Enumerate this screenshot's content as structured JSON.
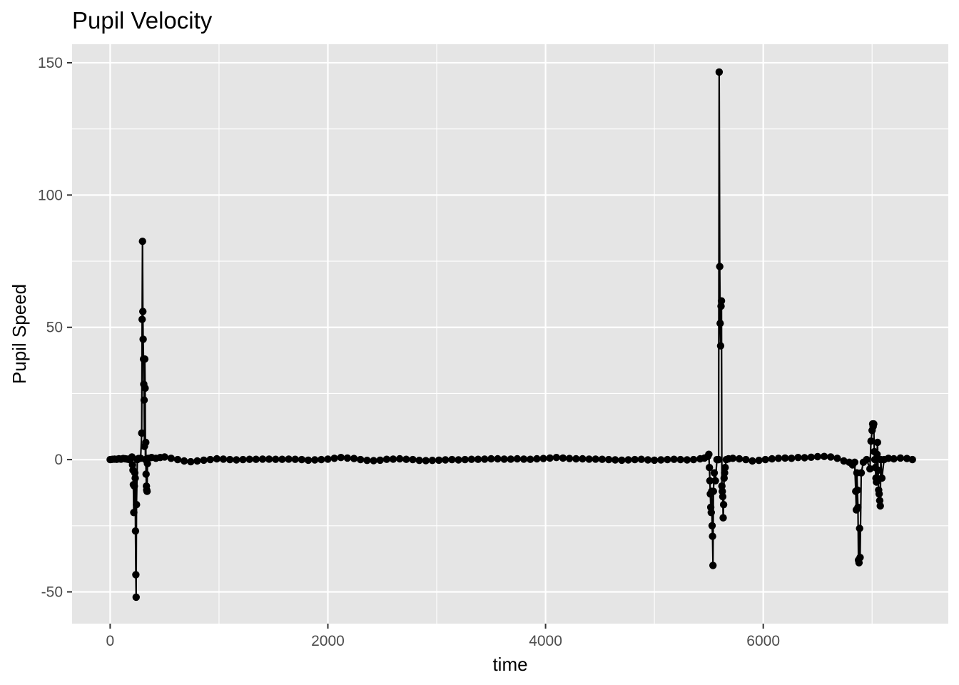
{
  "chart_data": {
    "type": "line",
    "title": "Pupil Velocity",
    "xlabel": "time",
    "ylabel": "Pupil Speed",
    "xlim": [
      -350,
      7700
    ],
    "ylim": [
      -62,
      157
    ],
    "x_ticks": [
      0,
      2000,
      4000,
      6000
    ],
    "x_tick_labels": [
      "0",
      "2000",
      "4000",
      "6000"
    ],
    "y_ticks": [
      -50,
      0,
      50,
      100,
      150
    ],
    "y_tick_labels": [
      "-50",
      "0",
      "50",
      "100",
      "150"
    ],
    "grid": true,
    "legend": "none",
    "colors": {
      "panel": "#e5e5e5",
      "grid": "#ffffff",
      "series": "#000000"
    },
    "series": [
      {
        "points": [
          [
            0,
            0
          ],
          [
            20,
            0.1
          ],
          [
            40,
            0.2
          ],
          [
            60,
            0.1
          ],
          [
            80,
            0.3
          ],
          [
            100,
            0.2
          ],
          [
            120,
            0.4
          ],
          [
            140,
            0.3
          ],
          [
            160,
            0.2
          ],
          [
            175,
            0
          ],
          [
            190,
            0.5
          ],
          [
            200,
            1
          ],
          [
            205,
            -2
          ],
          [
            210,
            -4
          ],
          [
            213,
            -9.5
          ],
          [
            217,
            -20
          ],
          [
            222,
            -10
          ],
          [
            226,
            -5
          ],
          [
            230,
            -7
          ],
          [
            233,
            -27
          ],
          [
            236,
            -43.5
          ],
          [
            239,
            -52
          ],
          [
            242,
            -17
          ],
          [
            250,
            0
          ],
          [
            260,
            0.4
          ],
          [
            280,
            0.5
          ],
          [
            290,
            10
          ],
          [
            294,
            53
          ],
          [
            297,
            82.5
          ],
          [
            300,
            56
          ],
          [
            303,
            45.5
          ],
          [
            306,
            38
          ],
          [
            309,
            28.5
          ],
          [
            312,
            22.5
          ],
          [
            315,
            5
          ],
          [
            318,
            38
          ],
          [
            321,
            27
          ],
          [
            324,
            0
          ],
          [
            327,
            6.5
          ],
          [
            330,
            -5.5
          ],
          [
            333,
            -10
          ],
          [
            336,
            -11.5
          ],
          [
            339,
            -12
          ],
          [
            342,
            -1.5
          ],
          [
            350,
            0.5
          ],
          [
            380,
            0.8
          ],
          [
            420,
            0.5
          ],
          [
            460,
            0.8
          ],
          [
            500,
            1
          ],
          [
            560,
            0.5
          ],
          [
            620,
            0
          ],
          [
            680,
            -0.5
          ],
          [
            740,
            -0.8
          ],
          [
            800,
            -0.5
          ],
          [
            860,
            -0.2
          ],
          [
            920,
            0
          ],
          [
            980,
            0.3
          ],
          [
            1040,
            0.2
          ],
          [
            1100,
            0
          ],
          [
            1160,
            -0.1
          ],
          [
            1220,
            0
          ],
          [
            1280,
            0.1
          ],
          [
            1340,
            0.1
          ],
          [
            1400,
            0.2
          ],
          [
            1460,
            0.2
          ],
          [
            1520,
            0.1
          ],
          [
            1580,
            0.1
          ],
          [
            1640,
            0.2
          ],
          [
            1700,
            0.1
          ],
          [
            1760,
            0
          ],
          [
            1820,
            -0.2
          ],
          [
            1880,
            -0.1
          ],
          [
            1940,
            0
          ],
          [
            2000,
            0.2
          ],
          [
            2060,
            0.5
          ],
          [
            2120,
            0.8
          ],
          [
            2180,
            0.6
          ],
          [
            2240,
            0.4
          ],
          [
            2300,
            0
          ],
          [
            2360,
            -0.3
          ],
          [
            2420,
            -0.4
          ],
          [
            2480,
            -0.2
          ],
          [
            2540,
            0.1
          ],
          [
            2600,
            0.2
          ],
          [
            2660,
            0.3
          ],
          [
            2720,
            0.1
          ],
          [
            2780,
            0
          ],
          [
            2840,
            -0.3
          ],
          [
            2900,
            -0.4
          ],
          [
            2960,
            -0.3
          ],
          [
            3020,
            -0.2
          ],
          [
            3080,
            -0.1
          ],
          [
            3140,
            0
          ],
          [
            3200,
            -0.1
          ],
          [
            3260,
            0
          ],
          [
            3320,
            0.1
          ],
          [
            3380,
            0.1
          ],
          [
            3440,
            0.2
          ],
          [
            3500,
            0.3
          ],
          [
            3560,
            0.3
          ],
          [
            3620,
            0.2
          ],
          [
            3680,
            0.2
          ],
          [
            3740,
            0.3
          ],
          [
            3800,
            0.2
          ],
          [
            3860,
            0.1
          ],
          [
            3920,
            0.3
          ],
          [
            3980,
            0.4
          ],
          [
            4040,
            0.6
          ],
          [
            4100,
            0.8
          ],
          [
            4160,
            0.6
          ],
          [
            4220,
            0.4
          ],
          [
            4280,
            0.3
          ],
          [
            4340,
            0.3
          ],
          [
            4400,
            0.2
          ],
          [
            4460,
            0.2
          ],
          [
            4520,
            0.1
          ],
          [
            4580,
            0
          ],
          [
            4640,
            -0.1
          ],
          [
            4700,
            -0.2
          ],
          [
            4760,
            -0.1
          ],
          [
            4820,
            0
          ],
          [
            4880,
            0.1
          ],
          [
            4940,
            -0.1
          ],
          [
            5000,
            -0.2
          ],
          [
            5060,
            -0.1
          ],
          [
            5120,
            0
          ],
          [
            5180,
            0.1
          ],
          [
            5240,
            0
          ],
          [
            5300,
            -0.1
          ],
          [
            5360,
            0
          ],
          [
            5420,
            0.3
          ],
          [
            5460,
            0.6
          ],
          [
            5490,
            1.2
          ],
          [
            5500,
            2
          ],
          [
            5505,
            -3
          ],
          [
            5510,
            -8
          ],
          [
            5514,
            -13
          ],
          [
            5518,
            -18
          ],
          [
            5522,
            -20
          ],
          [
            5526,
            -12
          ],
          [
            5530,
            -25
          ],
          [
            5534,
            -29
          ],
          [
            5538,
            -40
          ],
          [
            5542,
            -12
          ],
          [
            5550,
            -5
          ],
          [
            5560,
            -8
          ],
          [
            5575,
            0
          ],
          [
            5585,
            0
          ],
          [
            5590,
            0
          ],
          [
            5595,
            146.5
          ],
          [
            5600,
            73
          ],
          [
            5604,
            51.5
          ],
          [
            5608,
            43
          ],
          [
            5612,
            58
          ],
          [
            5616,
            60
          ],
          [
            5620,
            -10
          ],
          [
            5624,
            -12
          ],
          [
            5628,
            -14
          ],
          [
            5632,
            -22
          ],
          [
            5636,
            -17
          ],
          [
            5640,
            -7
          ],
          [
            5645,
            -5
          ],
          [
            5650,
            -3
          ],
          [
            5660,
            0
          ],
          [
            5680,
            0.3
          ],
          [
            5720,
            0.5
          ],
          [
            5780,
            0.3
          ],
          [
            5840,
            0
          ],
          [
            5900,
            -0.5
          ],
          [
            5960,
            -0.3
          ],
          [
            6020,
            0
          ],
          [
            6080,
            0.3
          ],
          [
            6140,
            0.5
          ],
          [
            6200,
            0.6
          ],
          [
            6260,
            0.5
          ],
          [
            6320,
            0.8
          ],
          [
            6380,
            0.7
          ],
          [
            6440,
            0.9
          ],
          [
            6500,
            1.1
          ],
          [
            6560,
            1.2
          ],
          [
            6620,
            1
          ],
          [
            6680,
            0.5
          ],
          [
            6740,
            -0.5
          ],
          [
            6790,
            -1
          ],
          [
            6820,
            -2
          ],
          [
            6840,
            -1
          ],
          [
            6850,
            -12
          ],
          [
            6855,
            -19
          ],
          [
            6860,
            -5
          ],
          [
            6865,
            -11.5
          ],
          [
            6870,
            -18
          ],
          [
            6875,
            -38
          ],
          [
            6880,
            -39
          ],
          [
            6885,
            -26
          ],
          [
            6890,
            -37
          ],
          [
            6900,
            -5
          ],
          [
            6920,
            -1
          ],
          [
            6950,
            0
          ],
          [
            6980,
            -3.5
          ],
          [
            6990,
            7
          ],
          [
            7000,
            11
          ],
          [
            7005,
            13.5
          ],
          [
            7010,
            12.5
          ],
          [
            7015,
            13.5
          ],
          [
            7020,
            3
          ],
          [
            7025,
            0
          ],
          [
            7030,
            -3
          ],
          [
            7035,
            -7
          ],
          [
            7040,
            -8.5
          ],
          [
            7045,
            2
          ],
          [
            7050,
            6.5
          ],
          [
            7055,
            -4
          ],
          [
            7060,
            -11.5
          ],
          [
            7065,
            -13
          ],
          [
            7070,
            -15.5
          ],
          [
            7075,
            -17.5
          ],
          [
            7080,
            0
          ],
          [
            7090,
            -7
          ],
          [
            7110,
            0
          ],
          [
            7150,
            0.5
          ],
          [
            7200,
            0.3
          ],
          [
            7260,
            0.6
          ],
          [
            7320,
            0.4
          ],
          [
            7370,
            0
          ]
        ]
      }
    ]
  }
}
